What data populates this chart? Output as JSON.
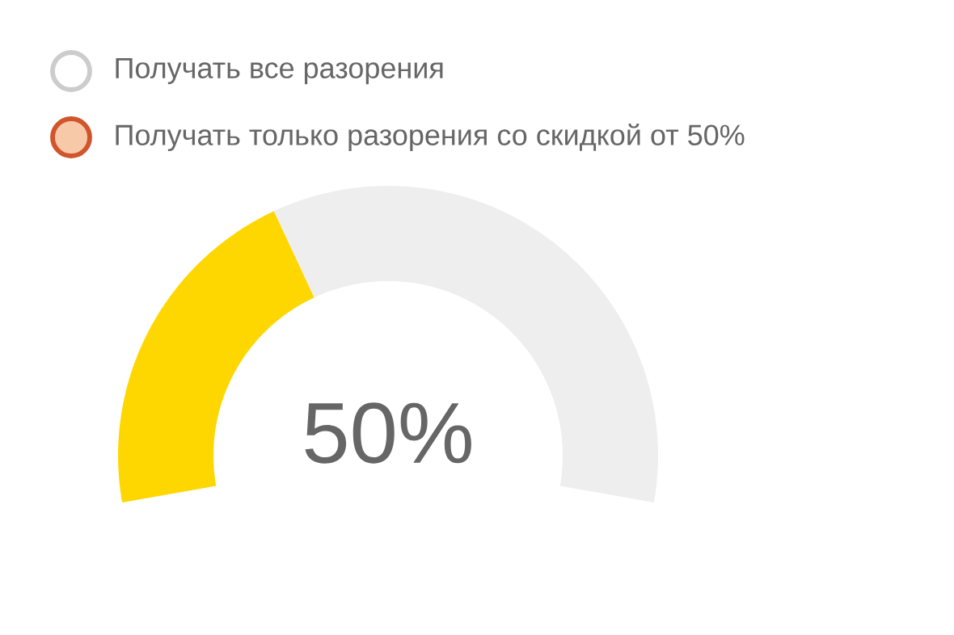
{
  "chart_data": {
    "type": "donut",
    "categories": [
      null,
      null
    ],
    "values": [
      37.5,
      62.5
    ],
    "colors": [
      "#ffd700",
      "#eeeeee"
    ],
    "annotations": [
      "Получать все разорения",
      "Получать только разорения со скидкой от 50%",
      "50%"
    ]
  }
}
